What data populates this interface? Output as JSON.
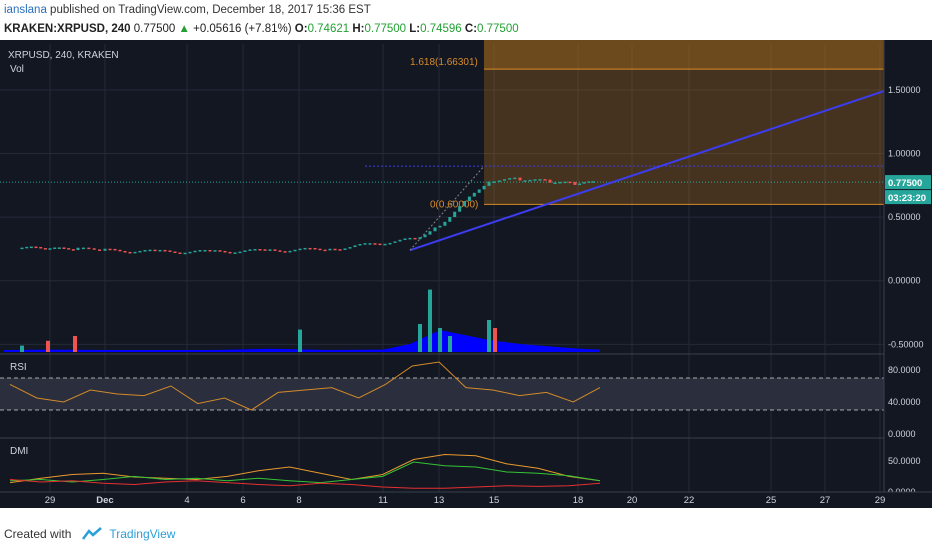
{
  "header": {
    "username": "ianslana",
    "published_text": "published on TradingView.com, December 18, 2017 15:36 EST",
    "symbol_line": "KRAKEN:XRPUSD, 240",
    "last": "0.77500",
    "change": "+0.05616 (+7.81%)",
    "o_label": "O:",
    "o": "0.74621",
    "h_label": "H:",
    "h": "0.77500",
    "l_label": "L:",
    "l": "0.74596",
    "c_label": "C:",
    "c": "0.77500"
  },
  "panes": {
    "main_title": "XRPUSD, 240, KRAKEN",
    "vol_label": "Vol",
    "rsi_label": "RSI",
    "dmi_label": "DMI"
  },
  "price_tags": {
    "price": "0.77500",
    "countdown": "03:23:20"
  },
  "fib": {
    "upper_label": "1.618(1.66301)",
    "lower_label": "0(0.60000)"
  },
  "footer": {
    "created_with": "Created with",
    "brand": "TradingView"
  },
  "colors": {
    "bg": "#131722",
    "up": "#26a69a",
    "down": "#ef5350",
    "vol_area": "#0000ff",
    "fib_fill": "#b8741a",
    "trend": "#3c3cf0",
    "rsi_line": "#d38a2a",
    "dmi_adx": "#e89a2e",
    "dmi_plus": "#35c435",
    "dmi_minus": "#e53030",
    "price_tag": "#26a69a"
  },
  "chart_data": [
    {
      "type": "candlestick",
      "title": "XRPUSD, 240, KRAKEN",
      "x_ticks": [
        "29",
        "Dec",
        "4",
        "6",
        "8",
        "11",
        "13",
        "15",
        "18",
        "20",
        "22",
        "25",
        "27",
        "29"
      ],
      "y_ticks": [
        "1.50000",
        "1.00000",
        "0.50000",
        "0.00000",
        "-0.50000"
      ],
      "ylim": [
        -0.56,
        1.86
      ],
      "x": [
        "Nov 28",
        "Nov 30",
        "Dec 2",
        "Dec 4",
        "Dec 6",
        "Dec 8",
        "Dec 10",
        "Dec 11",
        "Dec 12",
        "Dec 13",
        "Dec 14",
        "Dec 15",
        "Dec 16",
        "Dec 17",
        "Dec 18"
      ],
      "close": [
        0.26,
        0.25,
        0.25,
        0.24,
        0.23,
        0.23,
        0.24,
        0.25,
        0.33,
        0.44,
        0.79,
        0.8,
        0.78,
        0.76,
        0.775
      ],
      "last_price": 0.775,
      "fib_extension": {
        "level_0": 0.6,
        "level_1618": 1.66301
      },
      "volume_relative": [
        0.05,
        0.06,
        0.05,
        0.05,
        0.05,
        0.08,
        0.05,
        0.06,
        0.2,
        0.55,
        0.3,
        0.2,
        0.12,
        0.08,
        0.06
      ]
    },
    {
      "type": "line",
      "title": "RSI",
      "y_ticks": [
        "80.0000",
        "40.0000",
        "0.0000"
      ],
      "ylim": [
        0,
        100
      ],
      "bands": [
        70,
        30
      ],
      "values": [
        62,
        45,
        40,
        55,
        50,
        48,
        60,
        38,
        45,
        30,
        52,
        55,
        58,
        45,
        62,
        85,
        90,
        58,
        55,
        48,
        52,
        40,
        58
      ]
    },
    {
      "type": "line",
      "title": "DMI",
      "y_ticks": [
        "50.0000",
        "0.0000"
      ],
      "ylim": [
        0,
        80
      ],
      "series": [
        {
          "values": [
            15,
            22,
            28,
            30,
            24,
            22,
            20,
            25,
            34,
            40,
            30,
            20,
            28,
            52,
            60,
            58,
            45,
            38,
            25,
            18
          ]
        },
        {
          "values": [
            18,
            20,
            16,
            20,
            25,
            20,
            22,
            18,
            22,
            18,
            15,
            20,
            25,
            48,
            42,
            40,
            32,
            30,
            26,
            18
          ]
        },
        {
          "values": [
            20,
            16,
            18,
            14,
            12,
            16,
            18,
            15,
            12,
            10,
            14,
            12,
            8,
            6,
            6,
            8,
            10,
            9,
            10,
            14
          ]
        }
      ]
    }
  ]
}
